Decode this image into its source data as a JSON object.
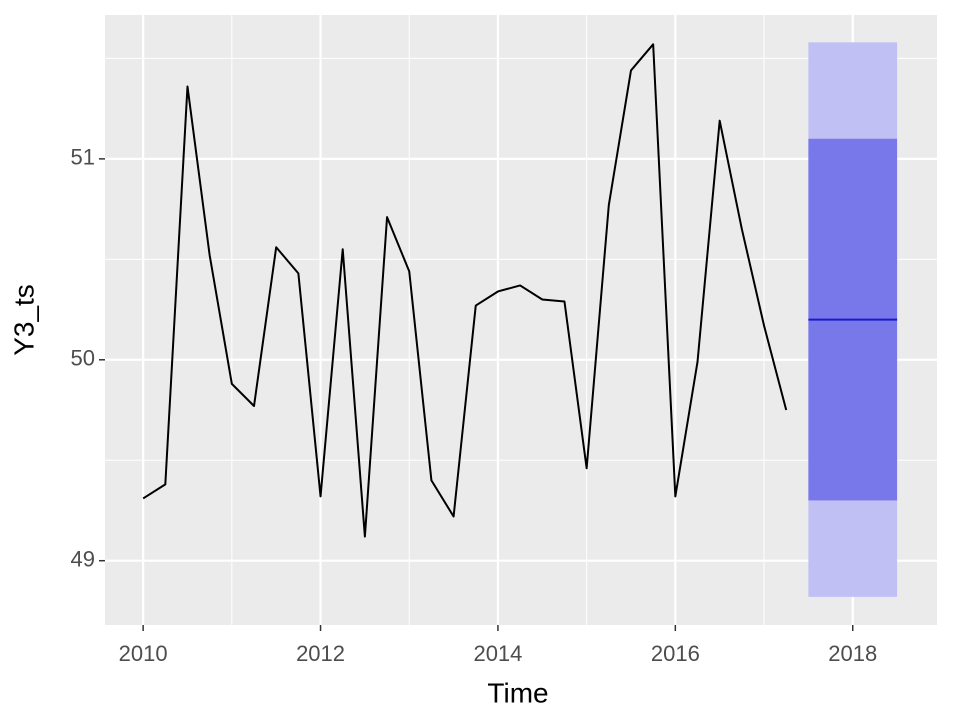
{
  "chart_data": {
    "type": "forecast",
    "xlabel": "Time",
    "ylabel": "Y3_ts",
    "x": [
      2010,
      2010.25,
      2010.5,
      2010.75,
      2011,
      2011.25,
      2011.5,
      2011.75,
      2012,
      2012.25,
      2012.5,
      2012.75,
      2013,
      2013.25,
      2013.5,
      2013.75,
      2014,
      2014.25,
      2014.5,
      2014.75,
      2015,
      2015.25,
      2015.5,
      2015.75,
      2016,
      2016.25,
      2016.5,
      2016.75,
      2017,
      2017.25
    ],
    "series": [
      {
        "color": "#000000",
        "values": [
          49.31,
          49.38,
          51.36,
          50.52,
          49.88,
          49.77,
          50.56,
          50.43,
          49.32,
          50.55,
          49.12,
          50.71,
          50.44,
          49.4,
          49.22,
          50.27,
          50.34,
          50.37,
          50.3,
          50.29,
          49.46,
          50.77,
          51.44,
          51.57,
          49.32,
          49.99,
          51.19,
          50.65,
          50.17,
          49.75
        ]
      }
    ],
    "forecast": {
      "x": [
        2017.5,
        2018.5
      ],
      "mean": 50.2,
      "mean_color": "#1a1acc",
      "lo80": 49.3,
      "hi80": 51.1,
      "color80": "#7878ea",
      "lo95": 48.82,
      "hi95": 51.58,
      "color95": "#c0c0f5"
    },
    "xlim": [
      2009.57,
      2018.95
    ],
    "xticks": [
      2010,
      2012,
      2014,
      2016,
      2018
    ],
    "ylim": [
      48.68,
      51.716
    ],
    "yticks": [
      49,
      50,
      51
    ],
    "grid": true,
    "background": "#ebebeb"
  }
}
